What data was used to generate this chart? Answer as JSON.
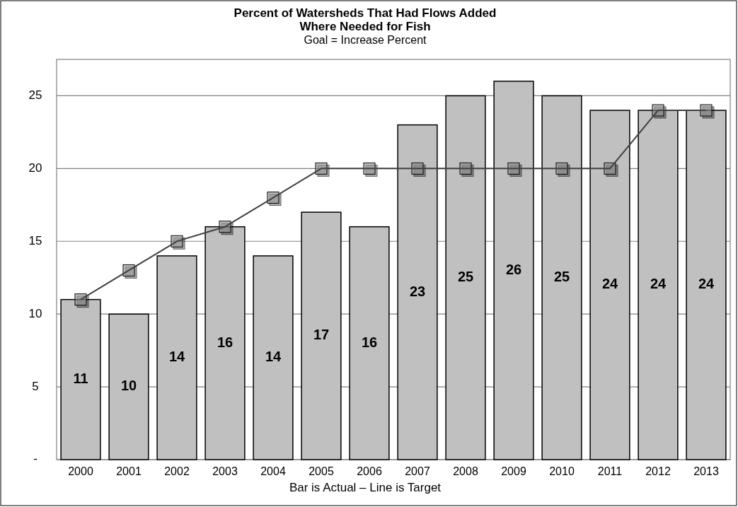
{
  "chart_data": {
    "type": "bar",
    "title": "Percent of Watersheds That Had Flows Added Where Needed for Fish",
    "subtitle": "Goal = Increase Percent",
    "xlabel": "Bar is Actual – Line is Target",
    "categories": [
      "2000",
      "2001",
      "2002",
      "2003",
      "2004",
      "2005",
      "2006",
      "2007",
      "2008",
      "2009",
      "2010",
      "2011",
      "2012",
      "2013"
    ],
    "series": [
      {
        "color": "#c0c0c0",
        "values": [
          11,
          10,
          14,
          16,
          14,
          17,
          16,
          23,
          25,
          26,
          25,
          24,
          24,
          24
        ],
        "value_labels": [
          "11",
          "10",
          "14",
          "16",
          "14",
          "17",
          "16",
          "23",
          "25",
          "26",
          "25",
          "24",
          "24",
          "24"
        ]
      },
      {
        "type": "line",
        "color": "#404040",
        "marker": "square",
        "values": [
          11,
          13,
          15,
          16,
          18,
          20,
          20,
          20,
          20,
          20,
          20,
          20,
          24,
          24
        ]
      }
    ],
    "ylim": [
      0,
      27.5
    ],
    "yticks": [
      {
        "value": 0,
        "label": "-"
      },
      5,
      10,
      15,
      20,
      25
    ],
    "grid": "y"
  }
}
